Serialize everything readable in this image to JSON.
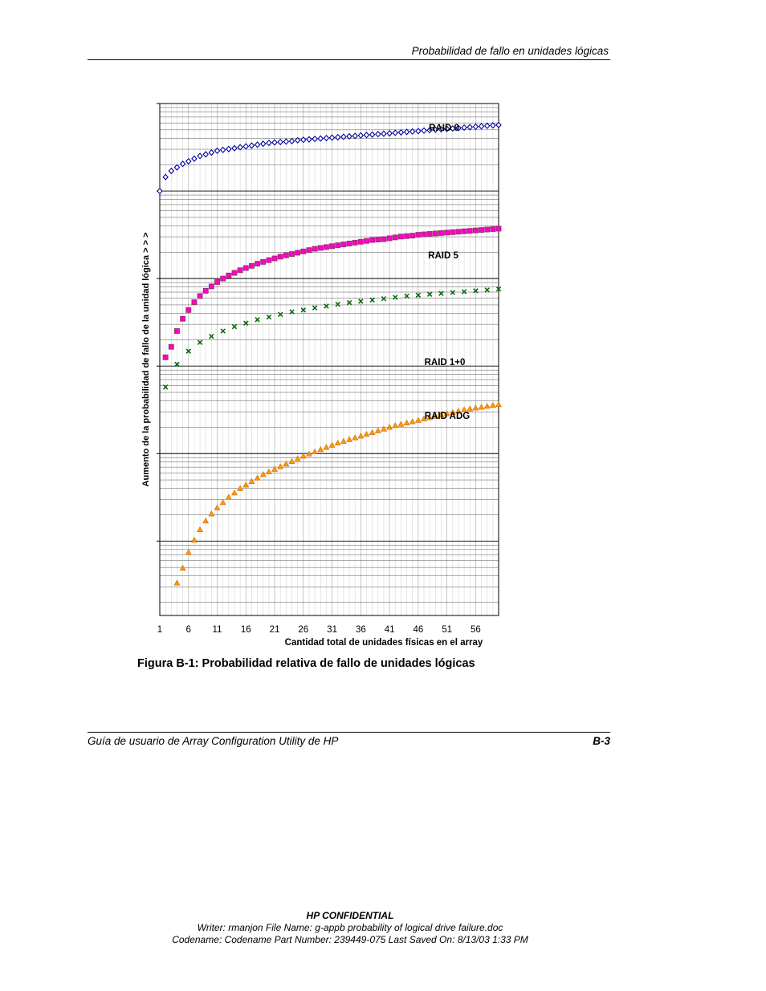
{
  "header": {
    "title": "Probabilidad de fallo en unidades lógicas"
  },
  "figure": {
    "caption": "Figura B-1:  Probabilidad relativa de fallo de unidades lógicas"
  },
  "footer": {
    "left": "Guía de usuario de Array Configuration Utility de HP",
    "page": "B-3"
  },
  "confidential": {
    "label": "HP CONFIDENTIAL",
    "line1": "Writer: rmanjon File Name: g-appb probability of logical drive failure.doc",
    "line2": "Codename: Codename Part Number: 239449-075 Last Saved On: 8/13/03 1:33 PM"
  },
  "chart_data": {
    "type": "scatter",
    "xlabel": "Cantidad total de unidades físicas en el array",
    "ylabel": "Aumento de la probabilidad de fallo de la unidad lógica  > > >",
    "xlim": [
      1,
      60
    ],
    "x_ticks": [
      1,
      6,
      11,
      16,
      21,
      26,
      31,
      36,
      41,
      46,
      51,
      56
    ],
    "y_scale": "log",
    "y_tick_labels_shown": false,
    "grid": true,
    "series": [
      {
        "name": "RAID 0",
        "marker": "diamond",
        "color": "#000099",
        "fill": "#ffffff",
        "x_start": 1,
        "x_step": 1,
        "log_y": [
          1.0,
          1.16,
          1.23,
          1.27,
          1.31,
          1.34,
          1.37,
          1.4,
          1.42,
          1.44,
          1.46,
          1.47,
          1.48,
          1.49,
          1.5,
          1.51,
          1.52,
          1.53,
          1.54,
          1.55,
          1.555,
          1.56,
          1.565,
          1.57,
          1.58,
          1.585,
          1.59,
          1.595,
          1.6,
          1.605,
          1.61,
          1.615,
          1.62,
          1.625,
          1.63,
          1.635,
          1.64,
          1.645,
          1.65,
          1.655,
          1.66,
          1.665,
          1.67,
          1.675,
          1.68,
          1.685,
          1.69,
          1.695,
          1.7,
          1.705,
          1.71,
          1.715,
          1.72,
          1.725,
          1.73,
          1.735,
          1.74,
          1.745,
          1.75,
          1.755
        ]
      },
      {
        "name": "RAID 5",
        "marker": "square",
        "color": "#993366",
        "fill": "#ff00cc",
        "x_start": 2,
        "x_step": 1,
        "log_y": [
          -0.9,
          -0.78,
          -0.6,
          -0.46,
          -0.36,
          -0.27,
          -0.2,
          -0.14,
          -0.09,
          -0.04,
          0.0,
          0.035,
          0.065,
          0.095,
          0.12,
          0.145,
          0.17,
          0.19,
          0.21,
          0.23,
          0.25,
          0.265,
          0.28,
          0.295,
          0.31,
          0.325,
          0.34,
          0.35,
          0.36,
          0.37,
          0.38,
          0.39,
          0.4,
          0.41,
          0.42,
          0.43,
          0.44,
          0.445,
          0.45,
          0.46,
          0.47,
          0.48,
          0.485,
          0.49,
          0.5,
          0.505,
          0.51,
          0.515,
          0.52,
          0.525,
          0.53,
          0.535,
          0.54,
          0.545,
          0.55,
          0.555,
          0.56,
          0.565,
          0.57
        ]
      },
      {
        "name": "RAID 1+0",
        "marker": "cross",
        "color": "#006600",
        "x_start": 2,
        "x_step": 2,
        "log_y": [
          -1.24,
          -0.98,
          -0.83,
          -0.73,
          -0.66,
          -0.6,
          -0.55,
          -0.51,
          -0.47,
          -0.44,
          -0.41,
          -0.38,
          -0.36,
          -0.335,
          -0.315,
          -0.295,
          -0.275,
          -0.26,
          -0.245,
          -0.23,
          -0.215,
          -0.2,
          -0.19,
          -0.18,
          -0.17,
          -0.16,
          -0.15,
          -0.14,
          -0.13,
          -0.12
        ]
      },
      {
        "name": "RAID ADG",
        "marker": "triangle",
        "color": "#cc6600",
        "fill": "#ff9900",
        "x_start": 4,
        "x_step": 1,
        "log_y": [
          -3.48,
          -3.31,
          -3.13,
          -2.99,
          -2.87,
          -2.77,
          -2.69,
          -2.62,
          -2.56,
          -2.5,
          -2.45,
          -2.4,
          -2.36,
          -2.32,
          -2.28,
          -2.24,
          -2.21,
          -2.18,
          -2.15,
          -2.12,
          -2.09,
          -2.06,
          -2.03,
          -2.005,
          -1.98,
          -1.955,
          -1.93,
          -1.905,
          -1.88,
          -1.86,
          -1.84,
          -1.82,
          -1.8,
          -1.78,
          -1.76,
          -1.74,
          -1.72,
          -1.7,
          -1.68,
          -1.665,
          -1.65,
          -1.635,
          -1.62,
          -1.605,
          -1.59,
          -1.575,
          -1.56,
          -1.545,
          -1.53,
          -1.515,
          -1.5,
          -1.49,
          -1.48,
          -1.47,
          -1.46,
          -1.45,
          -1.44
        ]
      }
    ]
  }
}
